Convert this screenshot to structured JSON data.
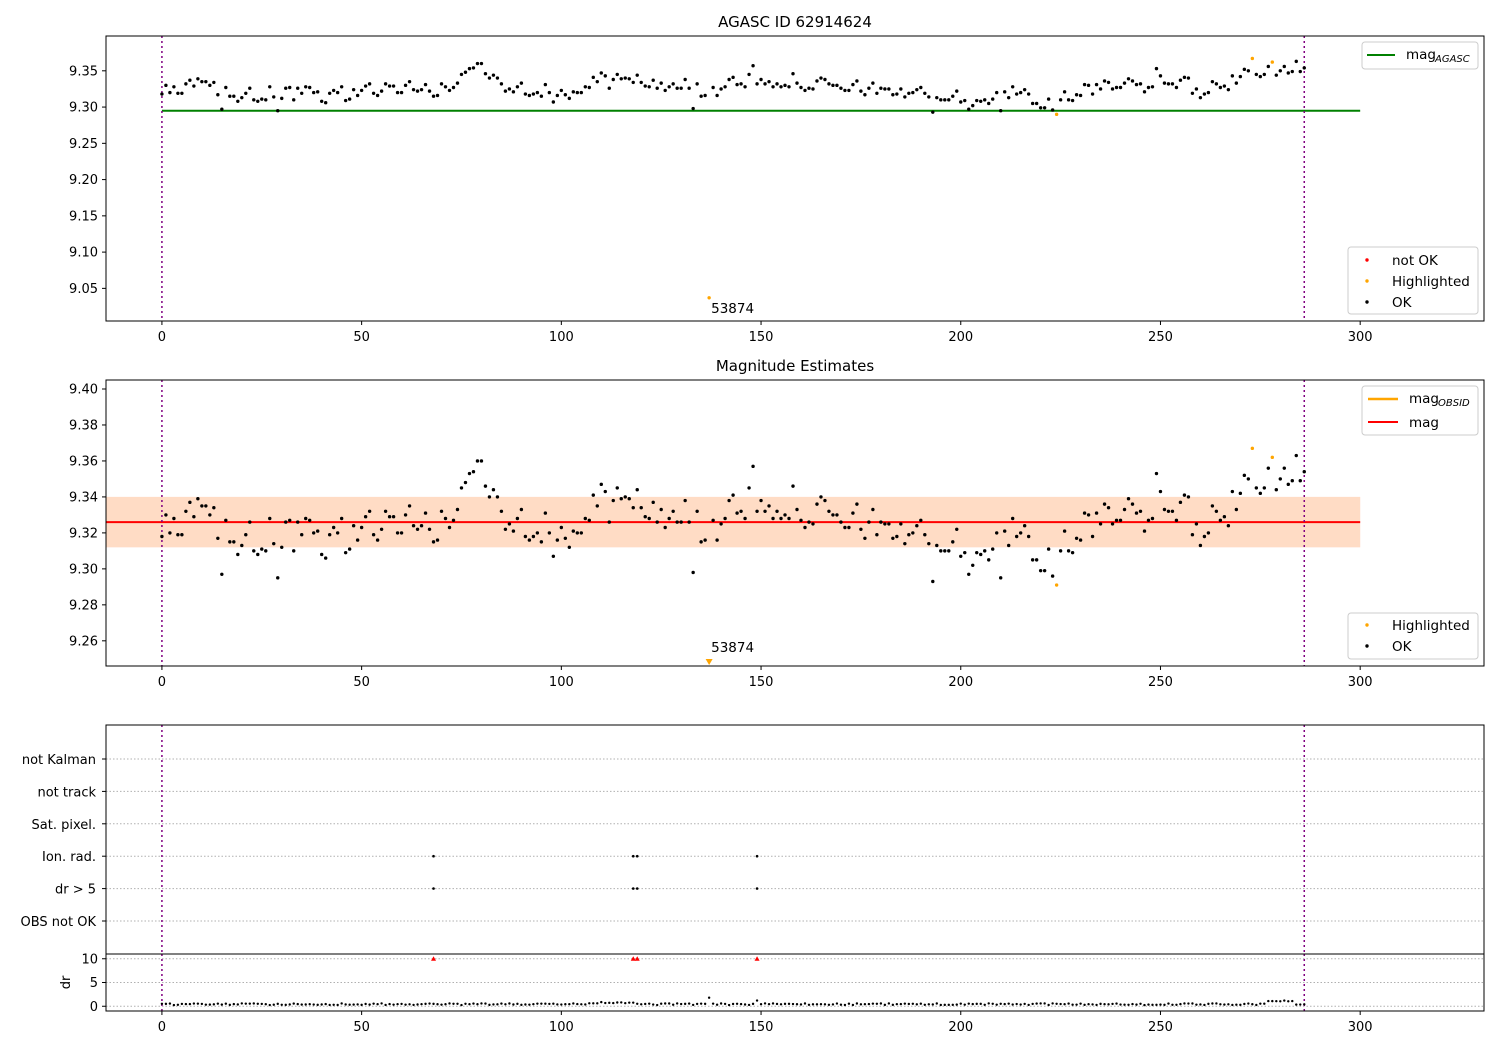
{
  "chart_data": [
    {
      "type": "scatter",
      "title": "AGASC ID 62914624",
      "xlim": [
        -14,
        331
      ],
      "ylim": [
        9.005,
        9.398
      ],
      "x_ticks": [
        0,
        50,
        100,
        150,
        200,
        250,
        300
      ],
      "x_tick_labels": [
        "0",
        "50",
        "100",
        "150",
        "200",
        "250",
        "300"
      ],
      "y_ticks": [
        9.05,
        9.1,
        9.15,
        9.2,
        9.25,
        9.3,
        9.35
      ],
      "y_tick_labels": [
        "9.05",
        "9.10",
        "9.15",
        "9.20",
        "9.25",
        "9.30",
        "9.35"
      ],
      "vlines": [
        0,
        286
      ],
      "hline": {
        "name": "mag",
        "subscript": "AGASC",
        "y": 9.295,
        "x_start": 0,
        "x_end": 300,
        "color": "#008000"
      },
      "series": [
        {
          "name": "not OK",
          "color": "#ff0000",
          "points": []
        },
        {
          "name": "Highlighted",
          "color": "#ffa500",
          "points": [
            [
              137,
              9.037
            ],
            [
              224,
              9.29
            ],
            [
              273,
              9.367
            ],
            [
              278,
              9.362
            ]
          ]
        },
        {
          "name": "OK",
          "color": "#000000",
          "points": []
        }
      ],
      "annotations": [
        {
          "text": "53874",
          "x": 137,
          "y": 9.037
        }
      ],
      "legend_upper": [
        "mag",
        "AGASC"
      ],
      "legend_lower": [
        "not OK",
        "Highlighted",
        "OK"
      ]
    },
    {
      "type": "scatter",
      "title": "Magnitude Estimates",
      "xlim": [
        -14,
        331
      ],
      "ylim": [
        9.246,
        9.405
      ],
      "x_ticks": [
        0,
        50,
        100,
        150,
        200,
        250,
        300
      ],
      "x_tick_labels": [
        "0",
        "50",
        "100",
        "150",
        "200",
        "250",
        "300"
      ],
      "y_ticks": [
        9.26,
        9.28,
        9.3,
        9.32,
        9.34,
        9.36,
        9.38,
        9.4
      ],
      "y_tick_labels": [
        "9.26",
        "9.28",
        "9.30",
        "9.32",
        "9.34",
        "9.36",
        "9.38",
        "9.40"
      ],
      "vlines": [
        0,
        286
      ],
      "mean_line": {
        "name": "mag",
        "y": 9.326,
        "x_start": -14,
        "x_end": 300,
        "color": "#ff0000"
      },
      "band_outer": {
        "y1": 9.312,
        "y2": 9.34,
        "color": "#ffc0cb"
      },
      "band_inner": {
        "y1": 9.312,
        "y2": 9.34,
        "x_start": -14,
        "x_end": 300,
        "color": "#ffdab9"
      },
      "series": [
        {
          "name": "Highlighted",
          "color": "#ffa500",
          "points": [
            [
              224,
              9.291
            ],
            [
              273,
              9.367
            ],
            [
              278,
              9.362
            ]
          ]
        },
        {
          "name": "OK",
          "color": "#000000",
          "points": []
        }
      ],
      "offscale_marker": {
        "x": 137,
        "y": 9.247,
        "color": "#ffa500"
      },
      "annotations": [
        {
          "text": "53874",
          "x": 137,
          "y": 9.247
        }
      ],
      "legend_upper": [
        "mag",
        "OBSID",
        "mag"
      ],
      "legend_lower": [
        "Highlighted",
        "OK"
      ]
    },
    {
      "type": "scatter",
      "title": "",
      "xlim": [
        -14,
        331
      ],
      "categories": [
        "not Kalman",
        "not track",
        "Sat. pixel.",
        "Ion. rad.",
        "dr > 5",
        "OBS not OK"
      ],
      "flags": {
        "Ion. rad.": [
          68,
          118,
          119,
          149
        ],
        "dr > 5": [
          68,
          118,
          119,
          149
        ]
      },
      "vlines": [
        0,
        286
      ]
    },
    {
      "type": "scatter",
      "title": "",
      "ylabel": "dr",
      "xlim": [
        -14,
        331
      ],
      "ylim": [
        -1,
        11
      ],
      "x_ticks": [
        0,
        50,
        100,
        150,
        200,
        250,
        300
      ],
      "x_tick_labels": [
        "0",
        "50",
        "100",
        "150",
        "200",
        "250",
        "300"
      ],
      "y_ticks": [
        0,
        5,
        10
      ],
      "y_tick_labels": [
        "0",
        "5",
        "10"
      ],
      "vlines": [
        0,
        286
      ],
      "clipped_markers": {
        "x": [
          68,
          118,
          119,
          149
        ],
        "y": 10,
        "color": "#ff0000"
      },
      "series": [
        {
          "name": "dr",
          "color": "#000000",
          "points": []
        }
      ]
    }
  ]
}
